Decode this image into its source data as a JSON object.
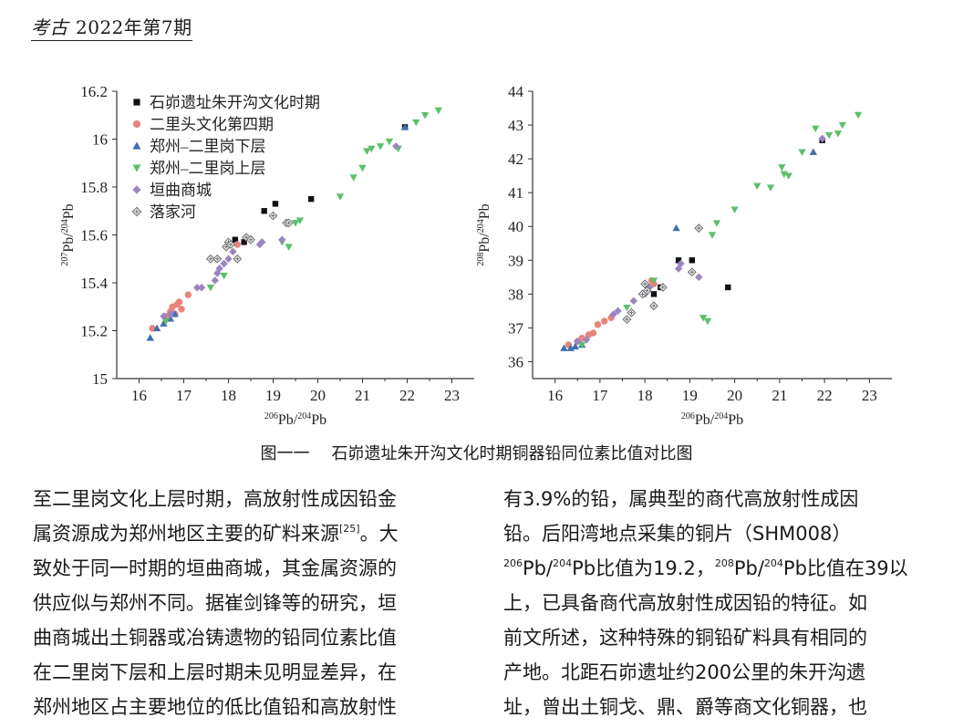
{
  "header": {
    "logo": "考古",
    "issue": "2022年第7期"
  },
  "caption": {
    "figure_no": "图一一",
    "text": "石峁遗址朱开沟文化时期铜器铅同位素比值对比图"
  },
  "legend": [
    {
      "label": "石峁遗址朱开沟文化时期",
      "color": "#111111",
      "marker": "square"
    },
    {
      "label": "二里头文化第四期",
      "color": "#e8847a",
      "marker": "circle"
    },
    {
      "label": "郑州–二里岗下层",
      "color": "#3f6fae",
      "marker": "triangle-up"
    },
    {
      "label": "郑州–二里岗上层",
      "color": "#5cc06a",
      "marker": "triangle-down"
    },
    {
      "label": "垣曲商城",
      "color": "#9b85bf",
      "marker": "diamond"
    },
    {
      "label": "落家河",
      "color": "#666666",
      "marker": "diamond-cross"
    }
  ],
  "chart_data": [
    {
      "type": "scatter",
      "title": "",
      "xlabel": "206Pb/204Pb",
      "ylabel": "207Pb/204Pb",
      "xlim": [
        15.5,
        23.5
      ],
      "ylim": [
        15,
        16.2
      ],
      "xticks": [
        "16",
        "17",
        "18",
        "19",
        "20",
        "21",
        "22",
        "23"
      ],
      "yticks": [
        "15",
        "15.2",
        "15.4",
        "15.6",
        "15.8",
        "16",
        "16.2"
      ],
      "legend_position": "top-left",
      "series": [
        {
          "name": "石峁遗址朱开沟文化时期",
          "points": [
            [
              18.15,
              15.58
            ],
            [
              18.35,
              15.57
            ],
            [
              18.8,
              15.7
            ],
            [
              19.05,
              15.73
            ],
            [
              19.85,
              15.75
            ],
            [
              21.95,
              16.05
            ]
          ]
        },
        {
          "name": "二里头文化第四期",
          "points": [
            [
              16.3,
              15.21
            ],
            [
              16.6,
              15.26
            ],
            [
              16.7,
              15.28
            ],
            [
              16.75,
              15.3
            ],
            [
              16.85,
              15.31
            ],
            [
              16.9,
              15.32
            ],
            [
              17.1,
              15.35
            ],
            [
              16.95,
              15.29
            ],
            [
              16.8,
              15.27
            ],
            [
              18.2,
              15.56
            ]
          ]
        },
        {
          "name": "郑州–二里岗下层",
          "points": [
            [
              16.25,
              15.17
            ],
            [
              16.4,
              15.21
            ],
            [
              16.55,
              15.23
            ],
            [
              16.7,
              15.25
            ],
            [
              16.8,
              15.27
            ],
            [
              21.95,
              16.05
            ]
          ]
        },
        {
          "name": "郑州–二里岗上层",
          "points": [
            [
              16.6,
              15.24
            ],
            [
              17.6,
              15.38
            ],
            [
              17.9,
              15.43
            ],
            [
              19.2,
              15.57
            ],
            [
              19.35,
              15.55
            ],
            [
              19.5,
              15.65
            ],
            [
              19.6,
              15.66
            ],
            [
              20.5,
              15.76
            ],
            [
              20.8,
              15.84
            ],
            [
              21.0,
              15.88
            ],
            [
              21.1,
              15.95
            ],
            [
              21.2,
              15.96
            ],
            [
              21.4,
              15.97
            ],
            [
              21.6,
              15.99
            ],
            [
              21.8,
              15.96
            ],
            [
              22.2,
              16.07
            ],
            [
              22.4,
              16.1
            ],
            [
              22.7,
              16.12
            ]
          ]
        },
        {
          "name": "垣曲商城",
          "points": [
            [
              16.55,
              15.26
            ],
            [
              16.7,
              15.27
            ],
            [
              17.3,
              15.38
            ],
            [
              17.4,
              15.38
            ],
            [
              17.7,
              15.41
            ],
            [
              17.75,
              15.44
            ],
            [
              17.8,
              15.46
            ],
            [
              17.9,
              15.48
            ],
            [
              18.0,
              15.5
            ],
            [
              18.1,
              15.53
            ],
            [
              18.7,
              15.56
            ],
            [
              18.75,
              15.57
            ],
            [
              19.2,
              15.58
            ],
            [
              21.75,
              15.97
            ]
          ]
        },
        {
          "name": "落家河",
          "points": [
            [
              17.6,
              15.5
            ],
            [
              17.75,
              15.5
            ],
            [
              17.95,
              15.55
            ],
            [
              18.0,
              15.57
            ],
            [
              18.05,
              15.56
            ],
            [
              18.2,
              15.5
            ],
            [
              18.4,
              15.59
            ],
            [
              18.5,
              15.58
            ],
            [
              19.0,
              15.68
            ],
            [
              19.3,
              15.65
            ],
            [
              19.35,
              15.65
            ]
          ]
        }
      ]
    },
    {
      "type": "scatter",
      "title": "",
      "xlabel": "206Pb/204Pb",
      "ylabel": "208Pb/204Pb",
      "xlim": [
        15.5,
        23.5
      ],
      "ylim": [
        35.5,
        44
      ],
      "xticks": [
        "16",
        "17",
        "18",
        "19",
        "20",
        "21",
        "22",
        "23"
      ],
      "yticks": [
        "36",
        "37",
        "38",
        "39",
        "40",
        "41",
        "42",
        "43",
        "44"
      ],
      "series": [
        {
          "name": "石峁遗址朱开沟文化时期",
          "points": [
            [
              18.2,
              38.0
            ],
            [
              18.35,
              38.2
            ],
            [
              18.75,
              39.0
            ],
            [
              19.05,
              39.0
            ],
            [
              19.85,
              38.2
            ],
            [
              21.95,
              42.55
            ]
          ]
        },
        {
          "name": "二里头文化第四期",
          "points": [
            [
              16.3,
              36.5
            ],
            [
              16.5,
              36.6
            ],
            [
              16.6,
              36.7
            ],
            [
              16.75,
              36.8
            ],
            [
              16.85,
              36.85
            ],
            [
              16.95,
              37.1
            ],
            [
              17.1,
              37.2
            ],
            [
              17.25,
              37.3
            ],
            [
              18.15,
              38.4
            ],
            [
              18.2,
              38.3
            ]
          ]
        },
        {
          "name": "郑州–二里岗下层",
          "points": [
            [
              16.2,
              36.4
            ],
            [
              16.35,
              36.4
            ],
            [
              16.45,
              36.45
            ],
            [
              16.6,
              36.5
            ],
            [
              18.7,
              39.95
            ],
            [
              21.75,
              42.2
            ]
          ]
        },
        {
          "name": "郑州–二里岗上层",
          "points": [
            [
              16.6,
              36.5
            ],
            [
              17.6,
              37.6
            ],
            [
              18.2,
              38.4
            ],
            [
              19.3,
              37.3
            ],
            [
              19.4,
              37.2
            ],
            [
              19.5,
              39.75
            ],
            [
              19.6,
              40.1
            ],
            [
              20.0,
              40.5
            ],
            [
              20.5,
              41.2
            ],
            [
              20.8,
              41.15
            ],
            [
              21.05,
              41.75
            ],
            [
              21.2,
              41.5
            ],
            [
              21.1,
              41.55
            ],
            [
              21.5,
              42.2
            ],
            [
              21.8,
              42.9
            ],
            [
              22.1,
              42.7
            ],
            [
              22.3,
              42.75
            ],
            [
              22.4,
              43.0
            ],
            [
              22.75,
              43.3
            ]
          ]
        },
        {
          "name": "垣曲商城",
          "points": [
            [
              16.5,
              36.6
            ],
            [
              16.7,
              36.65
            ],
            [
              17.3,
              37.4
            ],
            [
              17.4,
              37.5
            ],
            [
              17.75,
              37.8
            ],
            [
              18.0,
              38.0
            ],
            [
              18.1,
              38.2
            ],
            [
              18.75,
              38.75
            ],
            [
              18.8,
              38.9
            ],
            [
              19.2,
              38.5
            ],
            [
              21.95,
              42.6
            ]
          ]
        },
        {
          "name": "落家河",
          "points": [
            [
              17.6,
              37.25
            ],
            [
              17.7,
              37.45
            ],
            [
              17.95,
              38.0
            ],
            [
              18.0,
              38.3
            ],
            [
              18.05,
              38.1
            ],
            [
              18.2,
              37.65
            ],
            [
              18.4,
              38.2
            ],
            [
              19.05,
              38.65
            ],
            [
              19.2,
              39.95
            ]
          ]
        }
      ]
    }
  ],
  "text": {
    "col1": [
      "至二里岗文化上层时期，高放射性成因铅金",
      "属资源成为郑州地区主要的矿料来源",
      "致处于同一时期的垣曲商城，其金属资源的",
      "供应似与郑州不同。据崔剑锋等的研究，垣",
      "曲商城出土铜器或冶铸遗物的铅同位素比值",
      "在二里岗下层和上层时期未见明显差异，在",
      "郑州地区占主要地位的低比值铅和高放射性"
    ],
    "col1_ref": "[25]",
    "col1_line2_tail": "。大",
    "col2": [
      "有3.9%的铅，属典型的商代高放射性成因",
      "铅。后阳湾地点采集的铜片（SHM008）",
      "Pb比值为19.2，",
      "上，已具备商代高放射性成因铅的特征。如",
      "前文所述，这种特殊的铜铅矿料具有相同的",
      "产地。北距石峁遗址约200公里的朱开沟遗",
      "址，曾出土铜戈、鼎、爵等商文化铜器，也"
    ],
    "col2_line3": {
      "sup1": "206",
      "pb1": "Pb/",
      "sup2": "204",
      "mid": "Pb比值为19.2，",
      "sup3": "208",
      "pb2": "Pb/",
      "sup4": "204",
      "tail": "Pb比值在39以"
    }
  }
}
